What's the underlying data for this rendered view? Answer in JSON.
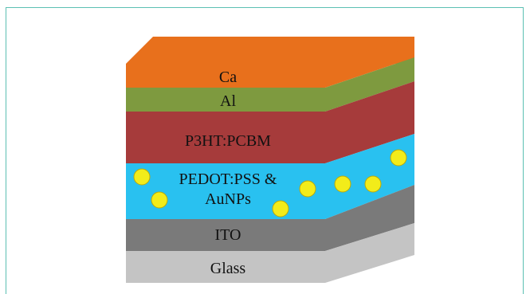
{
  "layers": [
    {
      "label": "Ca",
      "color": "#e8701c"
    },
    {
      "label": "Al",
      "color": "#7e9a3f"
    },
    {
      "label": "P3HT:PCBM",
      "color": "#a63b3b"
    },
    {
      "label_line1": "PEDOT:PSS &",
      "label_line2": "AuNPs",
      "color": "#29c1f0",
      "particle_color": "#f2ec1a"
    },
    {
      "label": "ITO",
      "color": "#7a7a7a"
    },
    {
      "label": "Glass",
      "color": "#c4c4c4"
    }
  ]
}
